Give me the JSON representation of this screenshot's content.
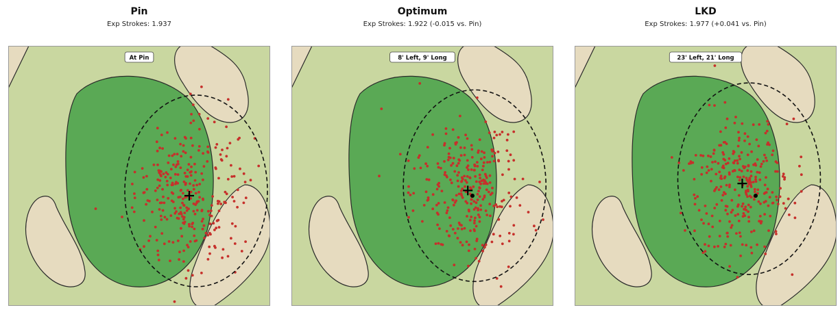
{
  "colors": {
    "fairway": "#c9d7a0",
    "green": "#5aa955",
    "bunker": "#e6dbbf",
    "shot": "#c6302b",
    "outline": "#2a2a2a"
  },
  "panels": [
    {
      "title": "Pin",
      "subtitle": "Exp Strokes: 1.937",
      "label": "At Pin"
    },
    {
      "title": "Optimum",
      "subtitle": "Exp Strokes: 1.922  (-0.015 vs. Pin)",
      "label": "8' Left, 9' Long"
    },
    {
      "title": "LKD",
      "subtitle": "Exp Strokes: 1.977  (+0.041 vs. Pin)",
      "label": "23' Left, 21' Long"
    }
  ],
  "chart_data": [
    {
      "type": "scatter",
      "title": "Pin",
      "subtitle": "Exp Strokes: 1.937",
      "annotation": "At Pin",
      "aim_offset_left_ft": 0,
      "aim_offset_long_ft": 0
    },
    {
      "type": "scatter",
      "title": "Optimum",
      "subtitle": "Exp Strokes: 1.922  (-0.015 vs. Pin)",
      "annotation": "8' Left, 9' Long",
      "aim_offset_left_ft": 8,
      "aim_offset_long_ft": 9
    },
    {
      "type": "scatter",
      "title": "LKD",
      "subtitle": "Exp Strokes: 1.977  (+0.041 vs. Pin)",
      "annotation": "23' Left, 21' Long",
      "aim_offset_left_ft": 23,
      "aim_offset_long_ft": 21
    }
  ]
}
